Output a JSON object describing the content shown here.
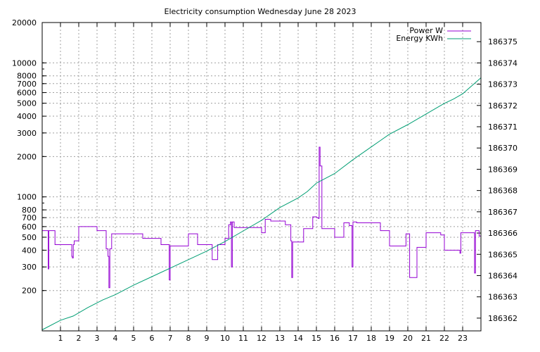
{
  "chart_data": {
    "type": "line",
    "title": "Electricity consumption Wednesday June 28 2023",
    "xlabel": "",
    "ylabel": "",
    "y2label": "",
    "x_ticks": [
      1,
      2,
      3,
      4,
      5,
      6,
      7,
      8,
      9,
      10,
      11,
      12,
      13,
      14,
      15,
      16,
      17,
      18,
      19,
      20,
      21,
      22,
      23
    ],
    "xlim": [
      0,
      24
    ],
    "y_scale": "log",
    "ylim": [
      100,
      20000
    ],
    "y_ticks": [
      200,
      300,
      400,
      500,
      600,
      700,
      800,
      1000,
      2000,
      3000,
      4000,
      5000,
      6000,
      7000,
      8000,
      10000,
      20000
    ],
    "y2lim": [
      186361.4,
      186375.9
    ],
    "y2_ticks": [
      186362,
      186363,
      186364,
      186365,
      186366,
      186367,
      186368,
      186369,
      186370,
      186371,
      186372,
      186373,
      186374,
      186375
    ],
    "grid": true,
    "legend_position": "top-right",
    "series": [
      {
        "name": "Power W",
        "axis": "left",
        "color": "#9400d3",
        "step": true,
        "x": [
          0,
          0.3,
          0.33,
          0.36,
          0.7,
          1.6,
          1.62,
          1.65,
          1.7,
          1.75,
          2.0,
          2.5,
          3.0,
          3.5,
          3.55,
          3.6,
          3.65,
          3.7,
          3.8,
          4.2,
          4.8,
          5.5,
          6.5,
          6.9,
          6.95,
          7.0,
          7.8,
          8.0,
          8.2,
          8.5,
          9.0,
          9.3,
          9.5,
          9.6,
          10.0,
          10.2,
          10.3,
          10.35,
          10.4,
          10.5,
          11.0,
          11.5,
          12.0,
          12.2,
          12.5,
          13.0,
          13.3,
          13.6,
          13.65,
          13.7,
          14.0,
          14.3,
          14.8,
          15.0,
          15.1,
          15.15,
          15.2,
          15.3,
          15.5,
          16.0,
          16.3,
          16.5,
          16.8,
          16.9,
          16.95,
          17.0,
          17.2,
          17.5,
          18.0,
          18.5,
          19.0,
          19.5,
          19.8,
          19.9,
          20.0,
          20.1,
          20.5,
          21.0,
          21.5,
          21.8,
          22.0,
          22.5,
          22.8,
          22.85,
          22.9,
          23.0,
          23.5,
          23.6,
          23.65,
          23.7,
          23.9,
          24.0
        ],
        "y": [
          560,
          560,
          290,
          560,
          440,
          440,
          360,
          350,
          440,
          470,
          600,
          600,
          560,
          410,
          410,
          360,
          210,
          410,
          530,
          530,
          530,
          490,
          440,
          440,
          240,
          430,
          430,
          530,
          530,
          440,
          440,
          340,
          340,
          440,
          490,
          620,
          650,
          300,
          650,
          590,
          590,
          590,
          540,
          680,
          660,
          660,
          620,
          470,
          250,
          460,
          460,
          580,
          710,
          700,
          690,
          2350,
          1700,
          580,
          580,
          500,
          500,
          640,
          610,
          610,
          300,
          650,
          640,
          640,
          640,
          560,
          430,
          430,
          430,
          530,
          530,
          250,
          420,
          540,
          540,
          520,
          400,
          400,
          400,
          380,
          540,
          540,
          540,
          540,
          270,
          560,
          510,
          510
        ]
      },
      {
        "name": "Energy KWh",
        "axis": "right",
        "color": "#009e73",
        "step": false,
        "x": [
          0,
          1,
          1.7,
          2.5,
          3.3,
          4.0,
          5.0,
          6.0,
          7.0,
          8.0,
          9.0,
          10.0,
          11.0,
          12.0,
          13.0,
          14.0,
          14.5,
          15.0,
          16.0,
          17.0,
          18.0,
          18.5,
          19.0,
          20.0,
          21.0,
          22.0,
          22.5,
          23.0,
          24.0
        ],
        "y": [
          186361.45,
          186361.9,
          186362.1,
          186362.5,
          186362.85,
          186363.1,
          186363.55,
          186363.95,
          186364.35,
          186364.75,
          186365.15,
          186365.6,
          186366.1,
          186366.6,
          186367.2,
          186367.65,
          186367.95,
          186368.35,
          186368.8,
          186369.45,
          186370.05,
          186370.35,
          186370.65,
          186371.1,
          186371.6,
          186372.1,
          186372.3,
          186372.55,
          186373.3
        ]
      }
    ]
  }
}
